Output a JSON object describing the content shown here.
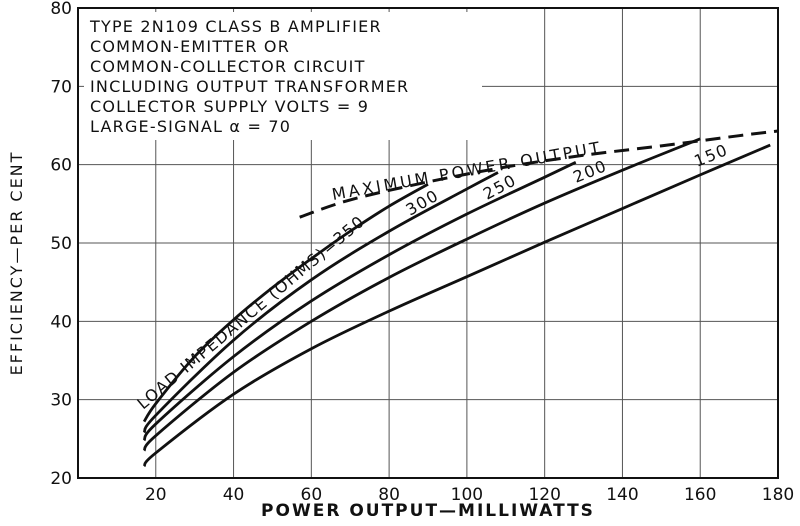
{
  "chart_data": {
    "type": "line",
    "xlabel": "POWER OUTPUT—MILLIWATTS",
    "ylabel": "EFFICIENCY—PER CENT",
    "xlim": [
      0,
      180
    ],
    "ylim": [
      20,
      80
    ],
    "xticks": [
      20,
      40,
      60,
      80,
      100,
      120,
      140,
      160,
      180
    ],
    "yticks": [
      20,
      30,
      40,
      50,
      60,
      70,
      80
    ],
    "grid": true,
    "title_lines": [
      "TYPE 2N109 CLASS B AMPLIFIER",
      "COMMON-EMITTER OR",
      "COMMON-COLLECTOR CIRCUIT",
      "INCLUDING OUTPUT TRANSFORMER",
      "COLLECTOR SUPPLY VOLTS = 9",
      "LARGE-SIGNAL α = 70"
    ],
    "curve_label_prefix": "LOAD IMPEDANCE (OHMS)=",
    "max_power_label": "MAXIMUM POWER OUTPUT",
    "series": [
      {
        "name": "350",
        "x": [
          17,
          20,
          30,
          40,
          50,
          60,
          70,
          80,
          90
        ],
        "y": [
          27.2,
          29.5,
          35.5,
          40.2,
          44.3,
          48.0,
          51.5,
          54.7,
          57.5
        ]
      },
      {
        "name": "300",
        "x": [
          17,
          20,
          40,
          60,
          80,
          100,
          108
        ],
        "y": [
          25.8,
          28.0,
          37.6,
          45.3,
          51.5,
          56.9,
          59.0
        ]
      },
      {
        "name": "250",
        "x": [
          17,
          20,
          40,
          60,
          80,
          100,
          120,
          128
        ],
        "y": [
          24.8,
          26.9,
          35.5,
          42.6,
          48.5,
          53.7,
          58.4,
          60.3
        ]
      },
      {
        "name": "200",
        "x": [
          17,
          20,
          40,
          60,
          80,
          100,
          120,
          140,
          160
        ],
        "y": [
          23.5,
          25.4,
          33.5,
          40.0,
          45.6,
          50.5,
          55.1,
          59.3,
          63.3
        ]
      },
      {
        "name": "150",
        "x": [
          17,
          20,
          40,
          60,
          80,
          100,
          120,
          140,
          160,
          178
        ],
        "y": [
          21.5,
          23.2,
          30.7,
          36.5,
          41.3,
          45.7,
          50.1,
          54.4,
          58.7,
          62.5
        ]
      }
    ],
    "max_power_line": {
      "x": [
        57,
        70,
        90,
        110,
        130,
        150,
        170,
        180
      ],
      "y": [
        53.3,
        55.5,
        57.8,
        59.7,
        61.2,
        62.4,
        63.7,
        64.3
      ]
    }
  }
}
